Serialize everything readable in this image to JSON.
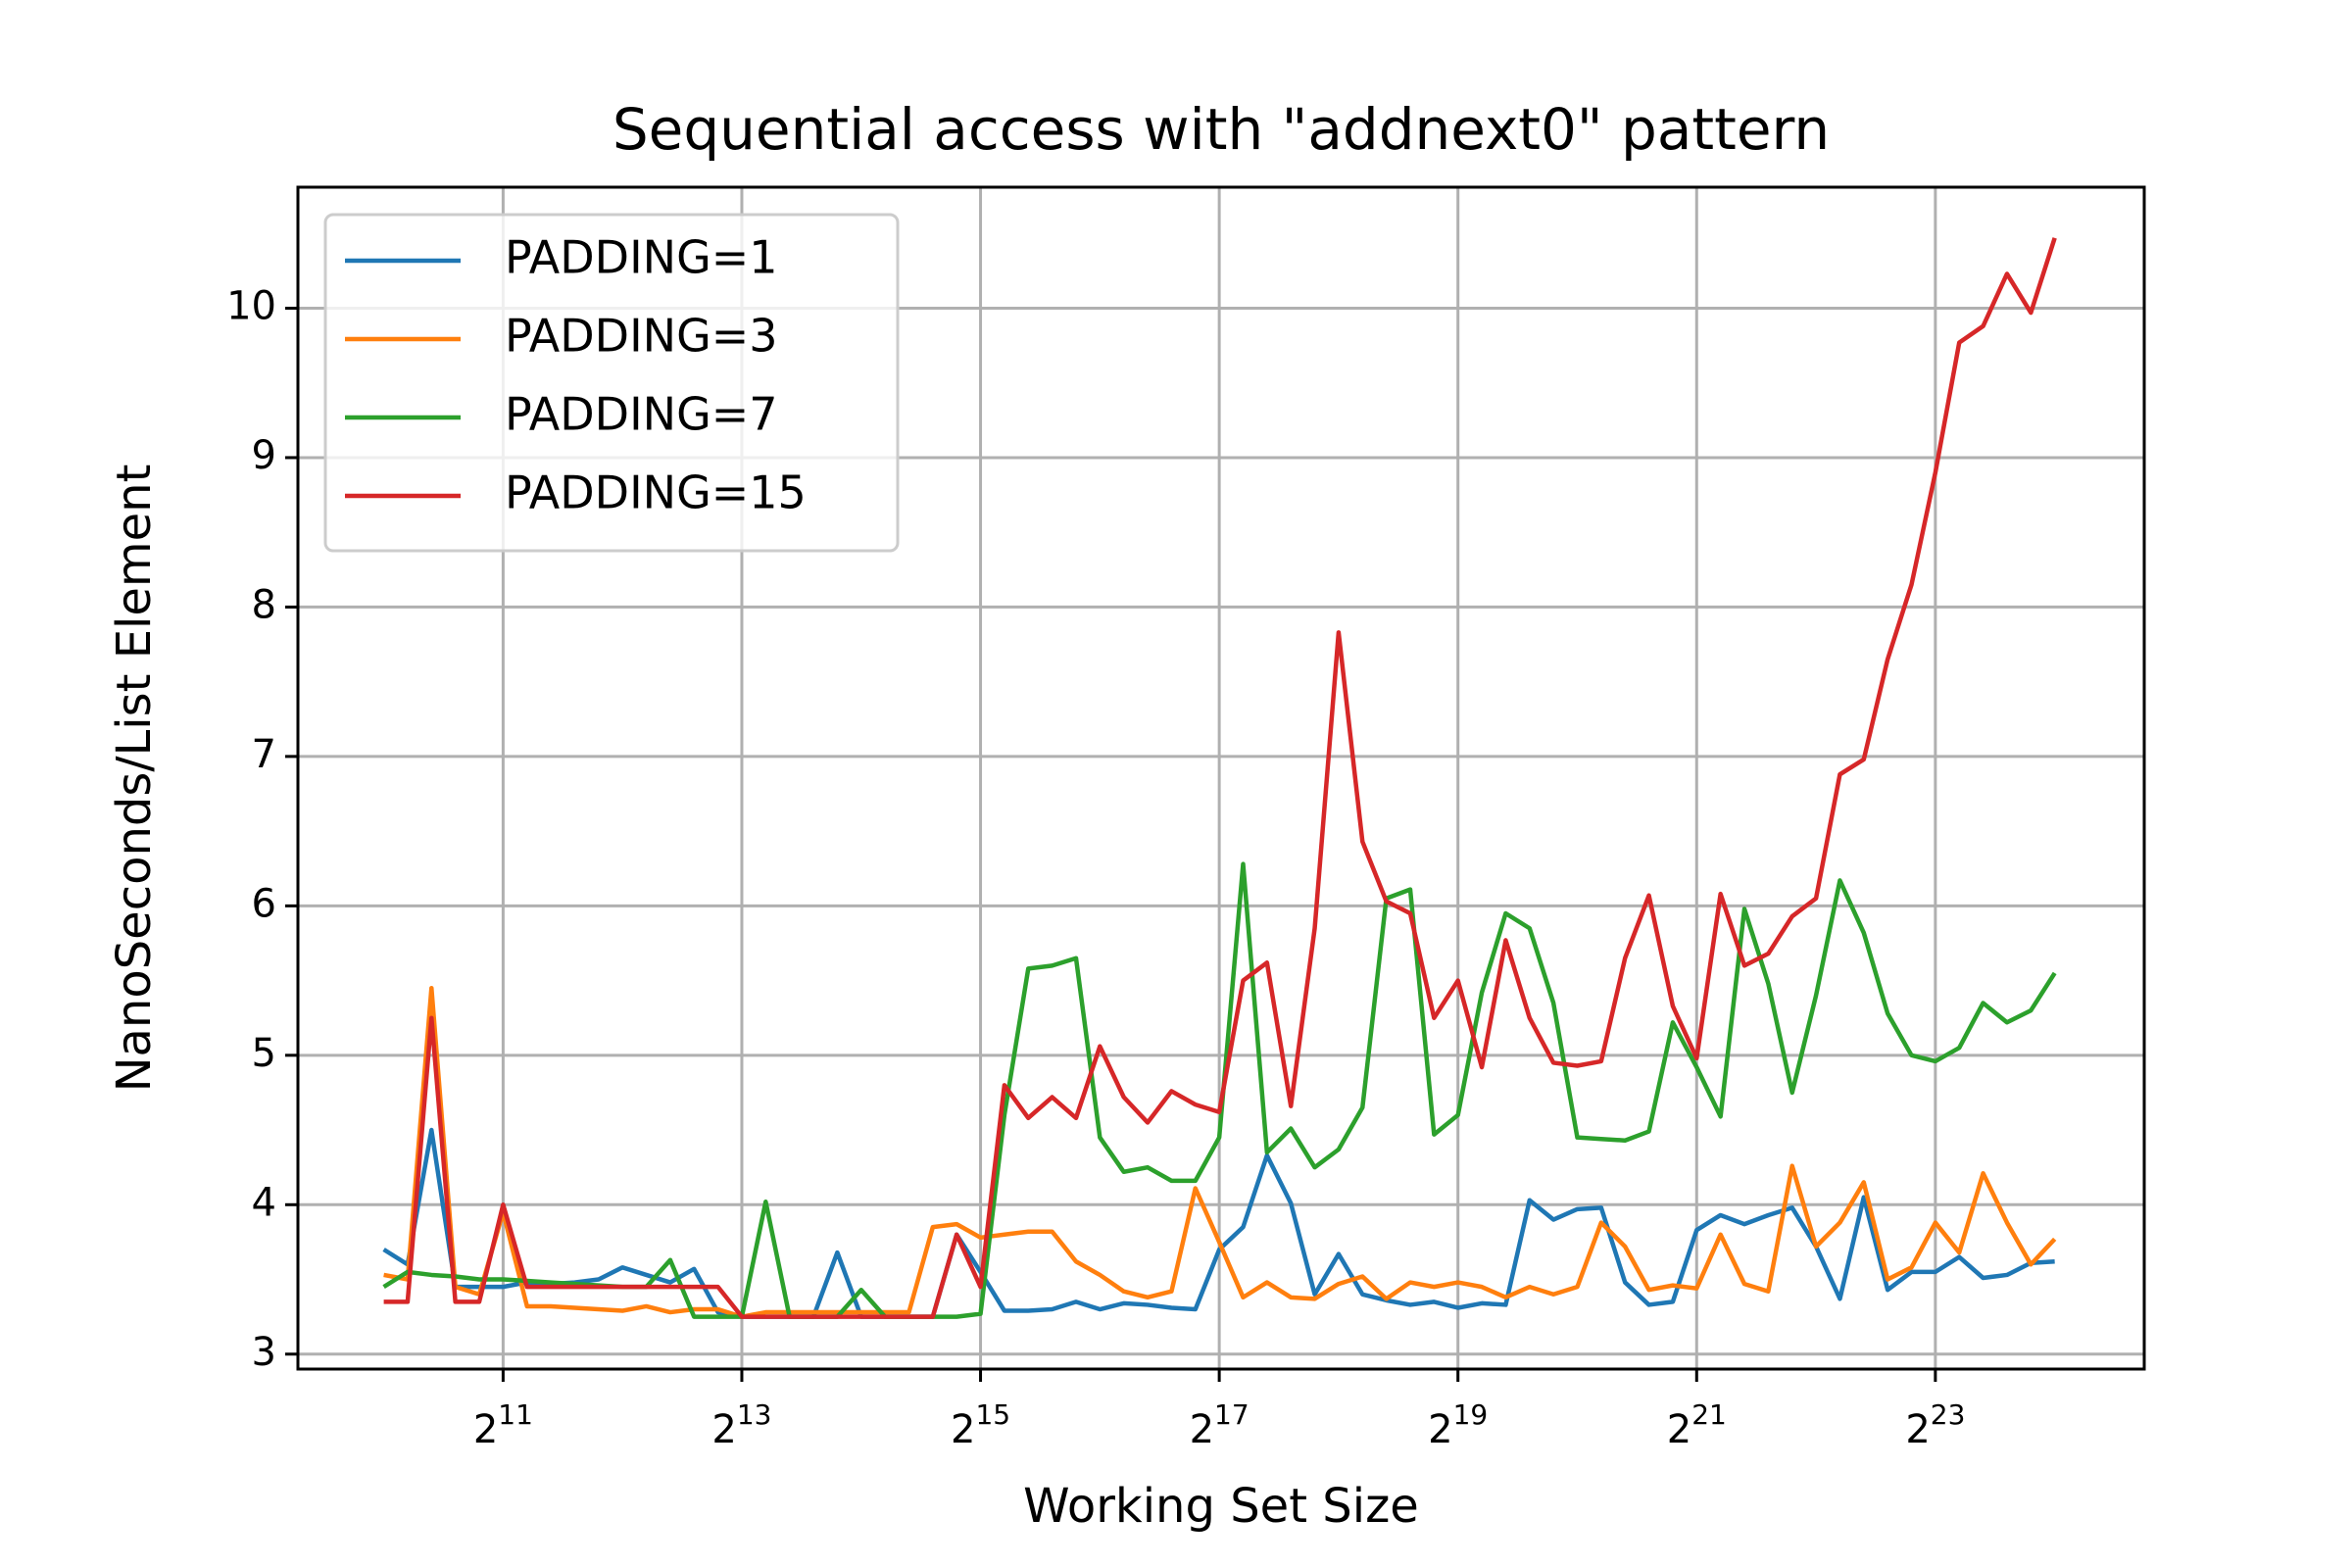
{
  "chart_data": {
    "type": "line",
    "title": "Sequential access with \"addnext0\" pattern",
    "xlabel": "Working Set Size",
    "ylabel": "NanoSeconds/List Element",
    "xscale": "log",
    "xbase": 2,
    "grid": true,
    "legend": "upper left",
    "xlim": [
      622,
      28215600
    ],
    "ylim": [
      2.9,
      10.81
    ],
    "yticks": [
      3,
      4,
      5,
      6,
      7,
      8,
      9,
      10
    ],
    "xticks": [
      {
        "value": 2048,
        "base": "2",
        "exponent": "11"
      },
      {
        "value": 8192,
        "base": "2",
        "exponent": "13"
      },
      {
        "value": 32768,
        "base": "2",
        "exponent": "15"
      },
      {
        "value": 131072,
        "base": "2",
        "exponent": "17"
      },
      {
        "value": 524288,
        "base": "2",
        "exponent": "19"
      },
      {
        "value": 2097152,
        "base": "2",
        "exponent": "21"
      },
      {
        "value": 8388608,
        "base": "2",
        "exponent": "23"
      }
    ],
    "x": [
      1024,
      1176,
      1351,
      1552,
      1783,
      2048,
      2353,
      2702,
      3104,
      3566,
      4096,
      4705,
      5405,
      6208,
      7132,
      8192,
      9410,
      10809,
      12417,
      14263,
      16384,
      18820,
      21619,
      24834,
      28526,
      32768,
      37641,
      43238,
      49667,
      57052,
      65536,
      75281,
      86475,
      99334,
      114105,
      131072,
      150562,
      172951,
      198668,
      228209,
      262144,
      301124,
      345901,
      397336,
      456419,
      524288,
      602249,
      691802,
      794672,
      912838,
      1048576,
      1204498,
      1383604,
      1589344,
      1825676,
      2097152,
      2408995,
      2767209,
      3178688,
      3651351,
      4194304,
      4817990,
      5534417,
      6357376,
      7302702,
      8388608,
      9635980,
      11068834,
      12714752,
      14605404,
      16777216
    ],
    "series": [
      {
        "name": "PADDING=1",
        "color": "#1f77b4",
        "values": [
          3.7,
          3.6,
          4.5,
          3.45,
          3.45,
          3.45,
          3.48,
          3.47,
          3.48,
          3.5,
          3.58,
          3.53,
          3.48,
          3.57,
          3.28,
          3.25,
          3.25,
          3.25,
          3.25,
          3.68,
          3.25,
          3.25,
          3.25,
          3.25,
          3.8,
          3.55,
          3.29,
          3.29,
          3.3,
          3.35,
          3.3,
          3.34,
          3.33,
          3.31,
          3.3,
          3.7,
          3.85,
          4.33,
          4.01,
          3.4,
          3.67,
          3.4,
          3.36,
          3.33,
          3.35,
          3.31,
          3.34,
          3.33,
          4.03,
          3.9,
          3.97,
          3.98,
          3.48,
          3.33,
          3.35,
          3.83,
          3.93,
          3.87,
          3.93,
          3.98,
          3.72,
          3.37,
          4.05,
          3.43,
          3.55,
          3.55,
          3.65,
          3.51,
          3.53,
          3.61,
          3.62
        ]
      },
      {
        "name": "PADDING=3",
        "color": "#ff7f0e",
        "values": [
          3.53,
          3.5,
          5.45,
          3.45,
          3.4,
          3.95,
          3.32,
          3.32,
          3.31,
          3.3,
          3.29,
          3.32,
          3.28,
          3.3,
          3.3,
          3.25,
          3.28,
          3.28,
          3.28,
          3.28,
          3.28,
          3.28,
          3.28,
          3.85,
          3.87,
          3.78,
          3.8,
          3.82,
          3.82,
          3.62,
          3.53,
          3.42,
          3.38,
          3.42,
          4.11,
          3.75,
          3.38,
          3.48,
          3.38,
          3.37,
          3.47,
          3.52,
          3.37,
          3.48,
          3.45,
          3.48,
          3.45,
          3.38,
          3.45,
          3.4,
          3.45,
          3.88,
          3.72,
          3.43,
          3.46,
          3.44,
          3.8,
          3.47,
          3.42,
          4.26,
          3.72,
          3.88,
          4.15,
          3.5,
          3.58,
          3.88,
          3.68,
          4.21,
          3.88,
          3.6,
          3.77
        ]
      },
      {
        "name": "PADDING=7",
        "color": "#2ca02c",
        "values": [
          3.45,
          3.55,
          3.53,
          3.52,
          3.5,
          3.5,
          3.49,
          3.48,
          3.47,
          3.46,
          3.45,
          3.45,
          3.63,
          3.25,
          3.25,
          3.25,
          4.02,
          3.25,
          3.25,
          3.25,
          3.43,
          3.25,
          3.25,
          3.25,
          3.25,
          3.27,
          4.6,
          5.58,
          5.6,
          5.65,
          4.45,
          4.22,
          4.25,
          4.16,
          4.16,
          4.45,
          6.28,
          4.35,
          4.51,
          4.25,
          4.37,
          4.65,
          6.05,
          6.11,
          4.47,
          4.6,
          5.42,
          5.95,
          5.85,
          5.35,
          4.45,
          4.44,
          4.43,
          4.49,
          5.22,
          4.92,
          4.59,
          5.98,
          5.48,
          4.75,
          5.4,
          6.17,
          5.82,
          5.28,
          5.0,
          4.96,
          5.05,
          5.35,
          5.22,
          5.3,
          5.55
        ]
      },
      {
        "name": "PADDING=15",
        "color": "#d62728",
        "values": [
          3.35,
          3.35,
          5.25,
          3.35,
          3.35,
          4.0,
          3.45,
          3.45,
          3.45,
          3.45,
          3.45,
          3.45,
          3.45,
          3.45,
          3.45,
          3.25,
          3.25,
          3.25,
          3.25,
          3.25,
          3.25,
          3.25,
          3.25,
          3.25,
          3.8,
          3.45,
          4.8,
          4.58,
          4.72,
          4.58,
          5.06,
          4.72,
          4.55,
          4.76,
          4.67,
          4.62,
          5.5,
          5.62,
          4.66,
          5.85,
          7.83,
          6.43,
          6.03,
          5.95,
          5.25,
          5.5,
          4.92,
          5.77,
          5.25,
          4.95,
          4.93,
          4.96,
          5.65,
          6.07,
          5.33,
          4.98,
          6.08,
          5.6,
          5.68,
          5.93,
          6.05,
          6.88,
          6.98,
          7.65,
          8.15,
          8.9,
          9.77,
          9.88,
          10.23,
          9.97,
          10.47
        ]
      }
    ]
  }
}
